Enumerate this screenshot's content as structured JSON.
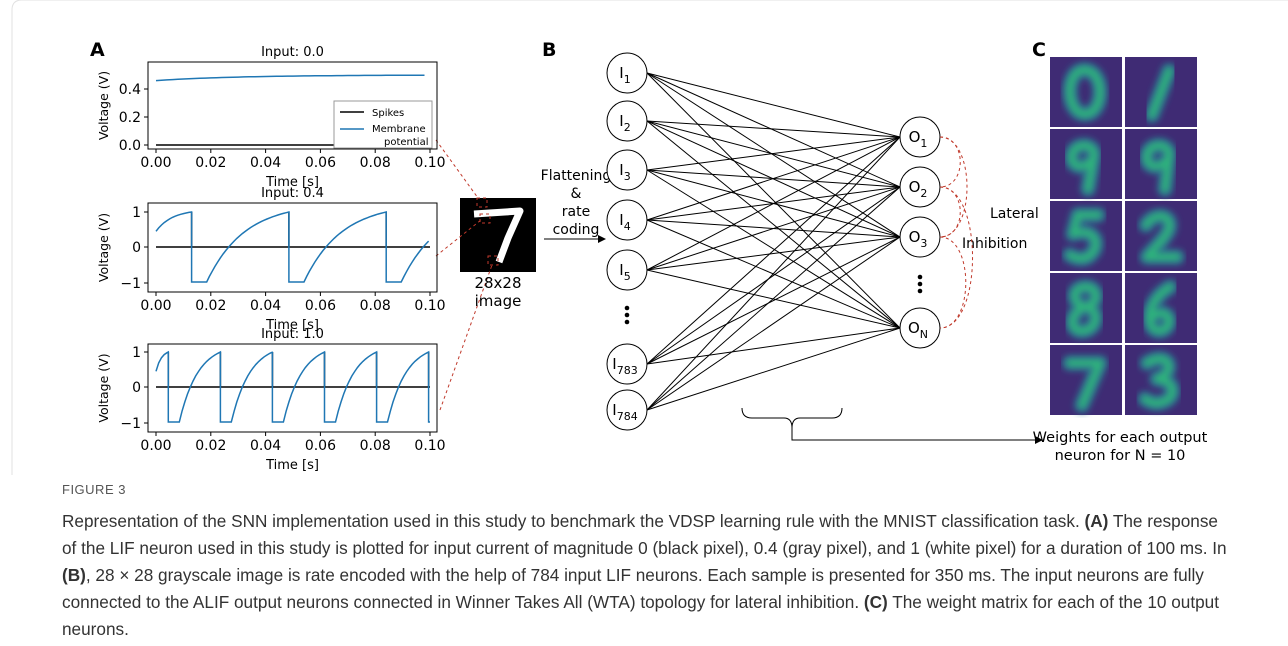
{
  "panels": {
    "A": {
      "label": "A",
      "plots": [
        {
          "title": "Input: 0.0",
          "xlabel": "Time [s]",
          "ylabel": "Voltage (V)",
          "xticks": [
            "0.00",
            "0.02",
            "0.04",
            "0.06",
            "0.08",
            "0.10"
          ],
          "yticks": [
            "0.0",
            "0.2",
            "0.4"
          ]
        },
        {
          "title": "Input: 0.4",
          "xlabel": "Time [s]",
          "ylabel": "Voltage (V)",
          "xticks": [
            "0.00",
            "0.02",
            "0.04",
            "0.06",
            "0.08",
            "0.10"
          ],
          "yticks": [
            "−1",
            "0",
            "1"
          ]
        },
        {
          "title": "Input: 1.0",
          "xlabel": "Time [s]",
          "ylabel": "Voltage (V)",
          "xticks": [
            "0.00",
            "0.02",
            "0.04",
            "0.06",
            "0.08",
            "0.10"
          ],
          "yticks": [
            "−1",
            "0",
            "1"
          ]
        }
      ],
      "legend": {
        "spikes": "Spikes",
        "membrane": [
          "Membrane",
          "potential"
        ]
      },
      "image_caption": [
        "28x28",
        "image"
      ]
    },
    "B": {
      "label": "B",
      "inputs": [
        [
          "I",
          "1"
        ],
        [
          "I",
          "2"
        ],
        [
          "I",
          "3"
        ],
        [
          "I",
          "4"
        ],
        [
          "I",
          "5"
        ],
        [
          "I",
          "783"
        ],
        [
          "I",
          "784"
        ]
      ],
      "outputs": [
        [
          "O",
          "1"
        ],
        [
          "O",
          "2"
        ],
        [
          "O",
          "3"
        ],
        [
          "O",
          "N"
        ]
      ],
      "encoding": [
        "Flattening",
        "&",
        "rate",
        "coding"
      ],
      "inhibition": [
        "Lateral",
        "Inhibition"
      ]
    },
    "C": {
      "label": "C",
      "caption": [
        "Weights for each output",
        "neuron for N = 10"
      ]
    }
  },
  "figure": {
    "label": "FIGURE 3",
    "caption": [
      "Representation of the SNN implementation used in this study to benchmark the VDSP learning rule with the MNIST classification task. ",
      "(A)",
      " The response of the LIF neuron used in this study is plotted for input current of magnitude 0 (black pixel), 0.4 (gray pixel), and 1 (white pixel) for a duration of 100 ms. In ",
      "(B)",
      ", 28 × 28 grayscale image is rate encoded with the help of 784 input LIF neurons. Each sample is presented for 350 ms. The input neurons are fully connected to the ALIF output neurons connected in Winner Takes All (WTA) topology for lateral inhibition. ",
      "(C)",
      " The weight matrix for each of the 10 output neurons."
    ]
  }
}
